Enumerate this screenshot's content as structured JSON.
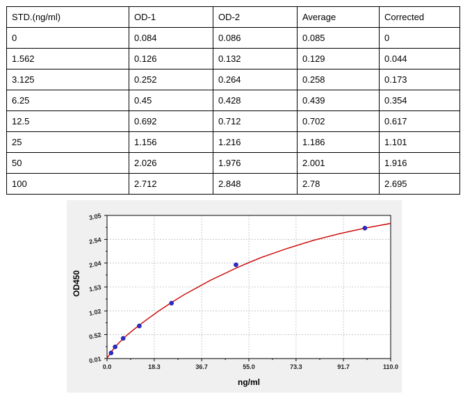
{
  "table": {
    "headers": [
      "STD.(ng/ml)",
      "OD-1",
      "OD-2",
      "Average",
      "Corrected"
    ],
    "rows": [
      [
        "0",
        "0.084",
        "0.086",
        "0.085",
        "0"
      ],
      [
        "1.562",
        "0.126",
        "0.132",
        "0.129",
        "0.044"
      ],
      [
        "3.125",
        "0.252",
        "0.264",
        "0.258",
        "0.173"
      ],
      [
        "6.25",
        "0.45",
        "0.428",
        "0.439",
        "0.354"
      ],
      [
        "12.5",
        "0.692",
        "0.712",
        "0.702",
        "0.617"
      ],
      [
        "25",
        "1.156",
        "1.216",
        "1.186",
        "1.101"
      ],
      [
        "50",
        "2.026",
        "1.976",
        "2.001",
        "1.916"
      ],
      [
        "100",
        "2.712",
        "2.848",
        "2.78",
        "2.695"
      ]
    ]
  },
  "chart_data": {
    "type": "scatter",
    "title": "",
    "xlabel": "ng/ml",
    "ylabel": "OD450",
    "xlim": [
      0,
      110
    ],
    "ylim": [
      0.01,
      3.05
    ],
    "x_ticks": [
      "0.0",
      "18.3",
      "36.7",
      "55.0",
      "73.3",
      "91.7",
      "110.0"
    ],
    "x_tick_values": [
      0,
      18.3,
      36.7,
      55.0,
      73.3,
      91.7,
      110.0
    ],
    "y_ticks": [
      "0.01",
      "0.52",
      "1.02",
      "1.53",
      "2.04",
      "2.54",
      "3.05"
    ],
    "y_tick_values": [
      0.01,
      0.52,
      1.02,
      1.53,
      2.04,
      2.54,
      3.05
    ],
    "grid": true,
    "points": [
      {
        "x": 1.562,
        "y": 0.129
      },
      {
        "x": 3.125,
        "y": 0.258
      },
      {
        "x": 6.25,
        "y": 0.439
      },
      {
        "x": 12.5,
        "y": 0.702
      },
      {
        "x": 25,
        "y": 1.186
      },
      {
        "x": 50,
        "y": 2.001
      },
      {
        "x": 100,
        "y": 2.78
      }
    ],
    "curve": {
      "x": [
        0,
        2,
        4,
        6,
        8,
        10,
        12.5,
        15,
        20,
        25,
        30,
        35,
        40,
        45,
        50,
        55,
        60,
        70,
        80,
        90,
        100,
        110
      ],
      "y": [
        0.02,
        0.18,
        0.31,
        0.42,
        0.52,
        0.61,
        0.72,
        0.82,
        1.02,
        1.2,
        1.37,
        1.52,
        1.67,
        1.8,
        1.93,
        2.05,
        2.16,
        2.35,
        2.52,
        2.66,
        2.78,
        2.88
      ]
    },
    "colors": {
      "curve": "#cc0000",
      "point": "#2b2bd0",
      "background": "#f0f0f0",
      "plot": "#ffffff"
    }
  }
}
